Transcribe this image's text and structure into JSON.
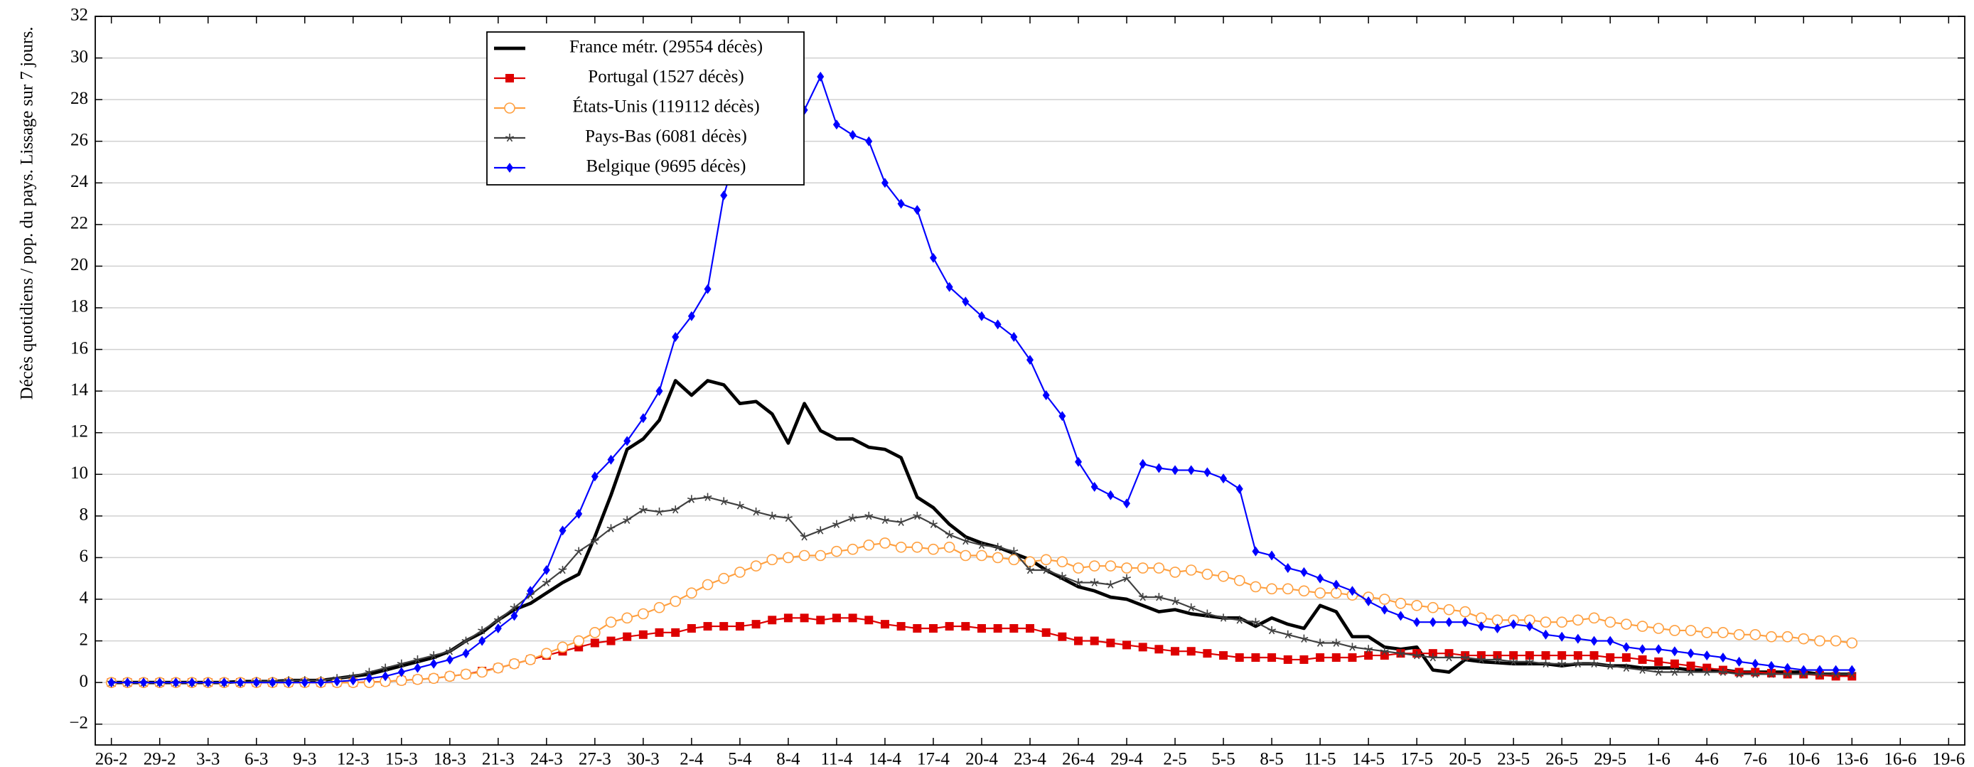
{
  "chart_data": {
    "type": "line",
    "y_label": "Décès quotidiens / pop. du pays. Lissage sur 7 jours.",
    "categories": [
      "26-2",
      null,
      null,
      "29-2",
      null,
      null,
      "3-3",
      null,
      null,
      "6-3",
      null,
      null,
      "9-3",
      null,
      null,
      "12-3",
      null,
      null,
      "15-3",
      null,
      null,
      "18-3",
      null,
      null,
      "21-3",
      null,
      null,
      "24-3",
      null,
      null,
      "27-3",
      null,
      null,
      "30-3",
      null,
      null,
      "2-4",
      null,
      null,
      "5-4",
      null,
      null,
      "8-4",
      null,
      null,
      "11-4",
      null,
      null,
      "14-4",
      null,
      null,
      "17-4",
      null,
      null,
      "20-4",
      null,
      null,
      "23-4",
      null,
      null,
      "26-4",
      null,
      null,
      "29-4",
      null,
      null,
      "2-5",
      null,
      null,
      "5-5",
      null,
      null,
      "8-5",
      null,
      null,
      "11-5",
      null,
      null,
      "14-5",
      null,
      null,
      "17-5",
      null,
      null,
      "20-5",
      null,
      null,
      "23-5",
      null,
      null,
      "26-5",
      null,
      null,
      "29-5",
      null,
      null,
      "1-6",
      null,
      null,
      "4-6",
      null,
      null,
      "7-6",
      null,
      null,
      "10-6",
      null,
      null,
      "13-6",
      null,
      null,
      "16-6",
      null,
      null,
      "19-6"
    ],
    "ylim": [
      -3,
      32
    ],
    "yticks": [
      {
        "value": -2,
        "label": "−2"
      },
      0,
      2,
      4,
      6,
      8,
      10,
      12,
      14,
      16,
      18,
      20,
      22,
      24,
      26,
      28,
      30,
      32
    ],
    "grid": true,
    "legend": "upper left",
    "series": [
      {
        "name": "France métr. (29554 décès)",
        "color": "#000000",
        "marker": "none",
        "width": 2.6,
        "values": [
          0,
          0,
          0,
          0,
          0,
          0,
          0,
          0,
          0.05,
          0.05,
          0.05,
          0.1,
          0.1,
          0.1,
          0.2,
          0.3,
          0.4,
          0.6,
          0.8,
          1.0,
          1.2,
          1.5,
          2.0,
          2.4,
          3.0,
          3.5,
          3.8,
          4.3,
          4.8,
          5.2,
          7.0,
          9.0,
          11.2,
          11.7,
          12.6,
          14.5,
          13.8,
          14.5,
          14.3,
          13.4,
          13.5,
          12.9,
          11.5,
          13.4,
          12.1,
          11.7,
          11.7,
          11.3,
          11.2,
          10.8,
          8.9,
          8.4,
          7.6,
          7.0,
          6.7,
          6.5,
          6.2,
          5.9,
          5.4,
          5.0,
          4.6,
          4.4,
          4.1,
          4.0,
          3.7,
          3.4,
          3.5,
          3.3,
          3.2,
          3.1,
          3.1,
          2.7,
          3.1,
          2.8,
          2.6,
          3.7,
          3.4,
          2.2,
          2.2,
          1.7,
          1.6,
          1.7,
          0.6,
          0.5,
          1.1,
          1.0,
          0.95,
          0.9,
          0.9,
          0.9,
          0.8,
          0.9,
          0.9,
          0.8,
          0.8,
          0.7,
          0.7,
          0.7,
          0.6,
          0.6,
          0.6,
          0.5,
          0.5,
          0.5,
          0.5,
          0.5,
          0.4,
          0.4,
          0.4,
          null,
          null,
          null,
          null,
          null,
          null
        ]
      },
      {
        "name": "Portugal (1527 décès)",
        "color": "#dd0000",
        "marker": "square",
        "width": 1.2,
        "values": [
          0,
          0,
          0,
          0,
          0,
          0,
          0,
          0,
          0,
          0,
          0,
          0,
          0,
          0,
          0,
          0,
          0.02,
          0.05,
          0.1,
          0.15,
          0.2,
          0.3,
          0.4,
          0.55,
          0.7,
          0.9,
          1.1,
          1.3,
          1.5,
          1.7,
          1.9,
          2.0,
          2.2,
          2.3,
          2.4,
          2.4,
          2.6,
          2.7,
          2.7,
          2.7,
          2.8,
          3.0,
          3.1,
          3.1,
          3.0,
          3.1,
          3.1,
          3.0,
          2.8,
          2.7,
          2.6,
          2.6,
          2.7,
          2.7,
          2.6,
          2.6,
          2.6,
          2.6,
          2.4,
          2.2,
          2.0,
          2.0,
          1.9,
          1.8,
          1.7,
          1.6,
          1.5,
          1.5,
          1.4,
          1.3,
          1.2,
          1.2,
          1.2,
          1.1,
          1.1,
          1.2,
          1.2,
          1.2,
          1.3,
          1.3,
          1.4,
          1.4,
          1.4,
          1.4,
          1.3,
          1.3,
          1.3,
          1.3,
          1.3,
          1.3,
          1.3,
          1.3,
          1.3,
          1.2,
          1.2,
          1.1,
          1.0,
          0.9,
          0.8,
          0.7,
          0.6,
          0.5,
          0.5,
          0.45,
          0.4,
          0.4,
          0.35,
          0.3,
          0.3,
          null,
          null,
          null,
          null,
          null,
          null
        ]
      },
      {
        "name": "États-Unis (119112 décès)",
        "color": "#ffa040",
        "marker": "circle",
        "width": 1.2,
        "values": [
          0,
          0,
          0,
          0,
          0,
          0,
          0,
          0,
          0,
          0,
          0,
          0,
          0,
          0,
          0,
          0,
          0,
          0.05,
          0.1,
          0.15,
          0.2,
          0.3,
          0.4,
          0.5,
          0.7,
          0.9,
          1.1,
          1.4,
          1.7,
          2.0,
          2.4,
          2.9,
          3.1,
          3.3,
          3.6,
          3.9,
          4.3,
          4.7,
          5.0,
          5.3,
          5.6,
          5.9,
          6.0,
          6.1,
          6.1,
          6.3,
          6.4,
          6.6,
          6.7,
          6.5,
          6.5,
          6.4,
          6.5,
          6.1,
          6.1,
          6.0,
          5.9,
          5.8,
          5.9,
          5.8,
          5.5,
          5.6,
          5.6,
          5.5,
          5.5,
          5.5,
          5.3,
          5.4,
          5.2,
          5.1,
          4.9,
          4.6,
          4.5,
          4.5,
          4.4,
          4.3,
          4.3,
          4.2,
          4.1,
          4.0,
          3.8,
          3.7,
          3.6,
          3.5,
          3.4,
          3.1,
          3.0,
          3.0,
          3.0,
          2.9,
          2.9,
          3.0,
          3.1,
          2.9,
          2.8,
          2.7,
          2.6,
          2.5,
          2.5,
          2.4,
          2.4,
          2.3,
          2.3,
          2.2,
          2.2,
          2.1,
          2.0,
          2.0,
          1.9,
          null,
          null,
          null,
          null,
          null,
          null
        ]
      },
      {
        "name": "Pays-Bas (6081 décès)",
        "color": "#404040",
        "marker": "star",
        "width": 1.2,
        "values": [
          0,
          0,
          0,
          0,
          0,
          0,
          0,
          0,
          0,
          0.05,
          0.05,
          0.1,
          0.1,
          0.1,
          0.2,
          0.3,
          0.5,
          0.7,
          0.9,
          1.1,
          1.3,
          1.5,
          2.0,
          2.5,
          3.0,
          3.6,
          4.2,
          4.8,
          5.4,
          6.3,
          6.8,
          7.4,
          7.8,
          8.3,
          8.2,
          8.3,
          8.8,
          8.9,
          8.7,
          8.5,
          8.2,
          8.0,
          7.9,
          7.0,
          7.3,
          7.6,
          7.9,
          8.0,
          7.8,
          7.7,
          8.0,
          7.6,
          7.1,
          6.8,
          6.6,
          6.5,
          6.3,
          5.4,
          5.4,
          5.1,
          4.8,
          4.8,
          4.7,
          5.0,
          4.1,
          4.1,
          3.9,
          3.6,
          3.3,
          3.1,
          3.0,
          2.9,
          2.5,
          2.3,
          2.1,
          1.9,
          1.9,
          1.7,
          1.6,
          1.5,
          1.4,
          1.3,
          1.2,
          1.2,
          1.2,
          1.1,
          1.1,
          1.0,
          1.0,
          0.9,
          0.9,
          0.9,
          0.9,
          0.8,
          0.7,
          0.6,
          0.5,
          0.5,
          0.5,
          0.5,
          0.5,
          0.4,
          0.4,
          0.4,
          0.4,
          0.4,
          0.4,
          0.4,
          0.4,
          null,
          null,
          null,
          null,
          null,
          null
        ]
      },
      {
        "name": "Belgique (9695 décès)",
        "color": "#0000ff",
        "marker": "diamond",
        "width": 1.2,
        "values": [
          0,
          0,
          0,
          0,
          0,
          0,
          0,
          0,
          0,
          0,
          0,
          0,
          0,
          0,
          0.05,
          0.1,
          0.2,
          0.3,
          0.5,
          0.7,
          0.9,
          1.1,
          1.4,
          2.0,
          2.6,
          3.2,
          4.4,
          5.4,
          7.3,
          8.1,
          9.9,
          10.7,
          11.6,
          12.7,
          14.0,
          16.6,
          17.6,
          18.9,
          23.4,
          26.0,
          27.0,
          28.0,
          27.5,
          27.5,
          29.1,
          26.8,
          26.3,
          26.0,
          24.0,
          23.0,
          22.7,
          20.4,
          19.0,
          18.3,
          17.6,
          17.2,
          16.6,
          15.5,
          13.8,
          12.8,
          10.6,
          9.4,
          9.0,
          8.6,
          10.5,
          10.3,
          10.2,
          10.2,
          10.1,
          9.8,
          9.3,
          6.3,
          6.1,
          5.5,
          5.3,
          5.0,
          4.7,
          4.4,
          3.9,
          3.5,
          3.2,
          2.9,
          2.9,
          2.9,
          2.9,
          2.7,
          2.6,
          2.8,
          2.7,
          2.3,
          2.2,
          2.1,
          2.0,
          2.0,
          1.7,
          1.6,
          1.6,
          1.5,
          1.4,
          1.3,
          1.2,
          1.0,
          0.9,
          0.8,
          0.7,
          0.6,
          0.6,
          0.6,
          0.6,
          null,
          null,
          null,
          null,
          null,
          null
        ]
      }
    ]
  }
}
